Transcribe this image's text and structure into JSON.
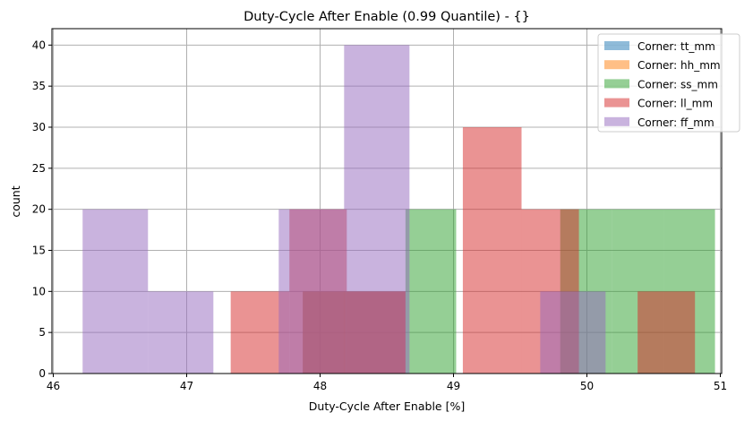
{
  "chart_data": {
    "type": "histogram",
    "title": "Duty-Cycle After Enable (0.99 Quantile) - {}",
    "xlabel": "Duty-Cycle After Enable [%]",
    "ylabel": "count",
    "xlim": [
      45.99,
      51.01
    ],
    "ylim": [
      0,
      42
    ],
    "xticks": [
      46,
      47,
      48,
      49,
      50,
      51
    ],
    "yticks": [
      0,
      5,
      10,
      15,
      20,
      25,
      30,
      35,
      40
    ],
    "grid": true,
    "legend_position": "top-right",
    "alpha": 0.5,
    "series": [
      {
        "name": "Corner: tt_mm",
        "color": "#1f77b4",
        "edges": [
          47.87,
          48.64
        ],
        "counts": [
          10
        ]
      },
      {
        "name": "Corner: hh_mm",
        "color": "#ff7f0e",
        "edges": [
          47.87,
          48.64
        ],
        "counts": [
          10
        ]
      },
      {
        "name": "Corner: ss_mm",
        "color": "#2ca02c",
        "edges": [
          48.64,
          49.02,
          49.41,
          49.8,
          50.19,
          50.58,
          50.96
        ],
        "counts": [
          20,
          0,
          0,
          20,
          20,
          20
        ]
      },
      {
        "name": "Corner: ll_mm",
        "color": "#d62728",
        "edges": [
          47.33,
          47.77,
          48.2,
          48.64,
          49.07,
          49.51,
          49.94,
          50.38,
          50.81
        ],
        "counts": [
          10,
          20,
          10,
          0,
          30,
          20,
          0,
          10
        ]
      },
      {
        "name": "Corner: ff_mm",
        "color": "#9467bd",
        "edges": [
          46.22,
          46.71,
          47.2,
          47.69,
          48.18,
          48.67,
          49.16,
          49.65,
          50.14
        ],
        "counts": [
          20,
          10,
          0,
          20,
          40,
          0,
          0,
          10
        ]
      }
    ]
  }
}
